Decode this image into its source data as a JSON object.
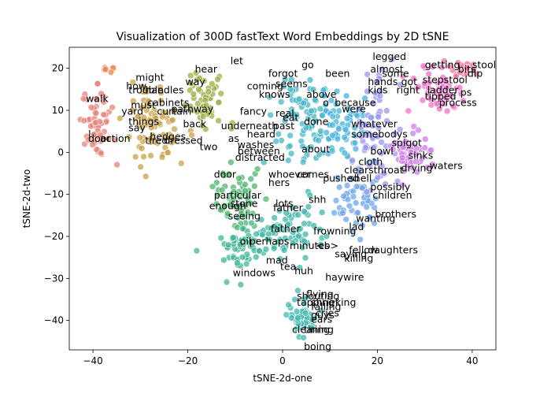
{
  "chart_data": {
    "type": "scatter",
    "title": "Visualization of 300D fastText Word Embeddings by 2D tSNE",
    "xlabel": "tSNE-2d-one",
    "ylabel": "tSNE-2d-two",
    "xlim": [
      -45,
      45
    ],
    "ylim": [
      -47,
      25
    ],
    "xticks": [
      -40,
      -20,
      0,
      20,
      40
    ],
    "yticks": [
      -40,
      -30,
      -20,
      -10,
      0,
      10,
      20
    ],
    "grid": false,
    "legend": "none",
    "clusters": [
      {
        "color": "#e5847b",
        "center": [
          -39,
          6
        ],
        "spread": [
          3,
          7
        ],
        "n": 60
      },
      {
        "color": "#e88a50",
        "center": [
          -36,
          20
        ],
        "spread": [
          1.5,
          1.5
        ],
        "n": 6
      },
      {
        "color": "#c9a24b",
        "center": [
          -27,
          7
        ],
        "spread": [
          5,
          9
        ],
        "n": 80
      },
      {
        "color": "#9cae45",
        "center": [
          -16,
          13
        ],
        "spread": [
          4,
          7
        ],
        "n": 55
      },
      {
        "color": "#4fb56f",
        "center": [
          -10,
          -10
        ],
        "spread": [
          4,
          8
        ],
        "n": 60
      },
      {
        "color": "#43b596",
        "center": [
          -8,
          -23
        ],
        "spread": [
          6,
          5
        ],
        "n": 60
      },
      {
        "color": "#3fb7a6",
        "center": [
          2,
          -19
        ],
        "spread": [
          6,
          6
        ],
        "n": 70
      },
      {
        "color": "#41b8b0",
        "center": [
          4,
          -39
        ],
        "spread": [
          3,
          4
        ],
        "n": 60
      },
      {
        "color": "#45b7c4",
        "center": [
          4,
          8
        ],
        "spread": [
          6,
          9
        ],
        "n": 90
      },
      {
        "color": "#4bb3de",
        "center": [
          13,
          7
        ],
        "spread": [
          5,
          9
        ],
        "n": 60
      },
      {
        "color": "#6fa6ea",
        "center": [
          15,
          -12
        ],
        "spread": [
          5,
          7
        ],
        "n": 55
      },
      {
        "color": "#9c97ee",
        "center": [
          20,
          6
        ],
        "spread": [
          4,
          12
        ],
        "n": 65
      },
      {
        "color": "#cd7fe4",
        "center": [
          27,
          0
        ],
        "spread": [
          4,
          5
        ],
        "n": 45
      },
      {
        "color": "#ec74c8",
        "center": [
          33,
          15
        ],
        "spread": [
          5,
          5
        ],
        "n": 55
      },
      {
        "color": "#f0749a",
        "center": [
          38,
          20
        ],
        "spread": [
          3,
          2
        ],
        "n": 20
      }
    ],
    "labels": [
      {
        "text": "legged",
        "x": 19,
        "y": 22
      },
      {
        "text": "getting",
        "x": 30,
        "y": 20
      },
      {
        "text": "stool",
        "x": 40,
        "y": 20
      },
      {
        "text": "let",
        "x": -11,
        "y": 21
      },
      {
        "text": "go",
        "x": 4,
        "y": 20
      },
      {
        "text": "almost",
        "x": 18.5,
        "y": 19
      },
      {
        "text": "hear",
        "x": -18.5,
        "y": 19
      },
      {
        "text": "been",
        "x": 9,
        "y": 18
      },
      {
        "text": "some",
        "x": 21,
        "y": 18
      },
      {
        "text": "bits",
        "x": 37,
        "y": 19
      },
      {
        "text": "dip",
        "x": 39,
        "y": 18
      },
      {
        "text": "might",
        "x": -31,
        "y": 17
      },
      {
        "text": "forgot",
        "x": -3,
        "y": 18
      },
      {
        "text": "hands",
        "x": 18,
        "y": 16
      },
      {
        "text": "stepstool",
        "x": 29.5,
        "y": 16.5
      },
      {
        "text": "got",
        "x": 25,
        "y": 16
      },
      {
        "text": "how",
        "x": -33,
        "y": 15
      },
      {
        "text": "way",
        "x": -20.5,
        "y": 16
      },
      {
        "text": "seems",
        "x": -1.5,
        "y": 15.5
      },
      {
        "text": "coming",
        "x": -7.5,
        "y": 15
      },
      {
        "text": "kids",
        "x": 18,
        "y": 14
      },
      {
        "text": "right",
        "x": 24,
        "y": 14
      },
      {
        "text": "ladder",
        "x": 30.5,
        "y": 14
      },
      {
        "text": "ps",
        "x": 37.5,
        "y": 13.5
      },
      {
        "text": "trouble",
        "x": -32.5,
        "y": 14
      },
      {
        "text": "handles",
        "x": -29,
        "y": 14
      },
      {
        "text": "knows",
        "x": -5,
        "y": 13
      },
      {
        "text": "above",
        "x": 5,
        "y": 13
      },
      {
        "text": "tipped",
        "x": 30,
        "y": 12.5
      },
      {
        "text": "process",
        "x": 33,
        "y": 11
      },
      {
        "text": "walk",
        "x": -41.5,
        "y": 12
      },
      {
        "text": "because",
        "x": 11,
        "y": 11
      },
      {
        "text": "o",
        "x": 8.5,
        "y": 11
      },
      {
        "text": "must",
        "x": -32,
        "y": 10.5
      },
      {
        "text": "cabinets",
        "x": -28.5,
        "y": 11
      },
      {
        "text": "were",
        "x": 12.5,
        "y": 9.5
      },
      {
        "text": "yard",
        "x": -34,
        "y": 9
      },
      {
        "text": "curtain",
        "x": -26.5,
        "y": 9
      },
      {
        "text": "pathway",
        "x": -23.5,
        "y": 9.5
      },
      {
        "text": "fancy",
        "x": -9,
        "y": 9
      },
      {
        "text": "real",
        "x": -1.5,
        "y": 8.5
      },
      {
        "text": "eat",
        "x": 0,
        "y": 7.5
      },
      {
        "text": "done",
        "x": 4.5,
        "y": 6.5
      },
      {
        "text": "whatever",
        "x": 14.5,
        "y": 6
      },
      {
        "text": "things",
        "x": -32.5,
        "y": 6.5
      },
      {
        "text": "back",
        "x": -21,
        "y": 6
      },
      {
        "text": "underneath",
        "x": -13,
        "y": 5.5
      },
      {
        "text": "past",
        "x": -2,
        "y": 5.5
      },
      {
        "text": "say",
        "x": -32.5,
        "y": 5
      },
      {
        "text": "heard",
        "x": -7.5,
        "y": 3.5
      },
      {
        "text": "somebodys",
        "x": 14.5,
        "y": 3.5
      },
      {
        "text": "hedges",
        "x": -28,
        "y": 3
      },
      {
        "text": "l",
        "x": -41,
        "y": 3.5
      },
      {
        "text": "door",
        "x": -41,
        "y": 2.5
      },
      {
        "text": "action",
        "x": -38.5,
        "y": 2.5
      },
      {
        "text": "tired",
        "x": -29,
        "y": 2
      },
      {
        "text": "dressed",
        "x": -25,
        "y": 2
      },
      {
        "text": "as",
        "x": -11.5,
        "y": 2.5
      },
      {
        "text": "spigot",
        "x": 23,
        "y": 1.5
      },
      {
        "text": "washes",
        "x": -9.5,
        "y": 1
      },
      {
        "text": "two",
        "x": -17.5,
        "y": 0.5
      },
      {
        "text": "about",
        "x": 4,
        "y": 0
      },
      {
        "text": "bowl",
        "x": 18.5,
        "y": -0.5
      },
      {
        "text": "between",
        "x": -9.5,
        "y": -0.5
      },
      {
        "text": "sinks",
        "x": 26.5,
        "y": -1.5
      },
      {
        "text": "distracted",
        "x": -10,
        "y": -2
      },
      {
        "text": "cloth",
        "x": 16,
        "y": -3
      },
      {
        "text": "waters",
        "x": 31,
        "y": -4
      },
      {
        "text": "drying",
        "x": 25,
        "y": -4.5
      },
      {
        "text": "clearsthroat",
        "x": 13,
        "y": -5
      },
      {
        "text": "door",
        "x": -14.5,
        "y": -6
      },
      {
        "text": "whoever",
        "x": -3,
        "y": -6
      },
      {
        "text": "comes",
        "x": 3,
        "y": -6
      },
      {
        "text": "pushed",
        "x": 8.5,
        "y": -7
      },
      {
        "text": "shell",
        "x": 14,
        "y": -7
      },
      {
        "text": "hers",
        "x": -3,
        "y": -8
      },
      {
        "text": "possibly",
        "x": 18.5,
        "y": -9
      },
      {
        "text": "particular",
        "x": -14.5,
        "y": -11
      },
      {
        "text": "children",
        "x": 19,
        "y": -11
      },
      {
        "text": "shh",
        "x": 5.5,
        "y": -12
      },
      {
        "text": "enough",
        "x": -15.5,
        "y": -13.5
      },
      {
        "text": "stone",
        "x": -11,
        "y": -13
      },
      {
        "text": "lots",
        "x": -1.5,
        "y": -13
      },
      {
        "text": "father",
        "x": -2,
        "y": -14
      },
      {
        "text": "seeing",
        "x": -11.5,
        "y": -16
      },
      {
        "text": "wanting",
        "x": 15.5,
        "y": -16.5
      },
      {
        "text": "brothers",
        "x": 19.5,
        "y": -15.5
      },
      {
        "text": "lad",
        "x": 14,
        "y": -18.5
      },
      {
        "text": "father",
        "x": -2.5,
        "y": -19
      },
      {
        "text": "frowning",
        "x": 6.5,
        "y": -19.5
      },
      {
        "text": "oil",
        "x": -9,
        "y": -22
      },
      {
        "text": "perhaps",
        "x": -7,
        "y": -22
      },
      {
        "text": "minutes",
        "x": 1.5,
        "y": -23
      },
      {
        "text": "<b>",
        "x": 7,
        "y": -23
      },
      {
        "text": "fellow",
        "x": 14,
        "y": -24
      },
      {
        "text": "daughters",
        "x": 18,
        "y": -24
      },
      {
        "text": "saying",
        "x": 11,
        "y": -25
      },
      {
        "text": "killing",
        "x": 13,
        "y": -26
      },
      {
        "text": "mad",
        "x": -3.5,
        "y": -26.5
      },
      {
        "text": "tea",
        "x": -0.5,
        "y": -28
      },
      {
        "text": "huh",
        "x": 2.5,
        "y": -29
      },
      {
        "text": "windows",
        "x": -10.5,
        "y": -29.5
      },
      {
        "text": "haywire",
        "x": 9,
        "y": -30.5
      },
      {
        "text": "flying",
        "x": 5,
        "y": -34.5
      },
      {
        "text": "shouting",
        "x": 3,
        "y": -35
      },
      {
        "text": "tapping",
        "x": 3,
        "y": -36.5
      },
      {
        "text": "shrieking",
        "x": 6,
        "y": -36.5
      },
      {
        "text": "falling",
        "x": 6,
        "y": -37.5
      },
      {
        "text": "guys",
        "x": 6,
        "y": -39.5
      },
      {
        "text": "cries",
        "x": 7,
        "y": -39
      },
      {
        "text": "ears",
        "x": 6,
        "y": -40.5
      },
      {
        "text": "cleaning",
        "x": 2,
        "y": -43
      },
      {
        "text": "tiring",
        "x": 4.5,
        "y": -43
      },
      {
        "text": "boing",
        "x": 4.5,
        "y": -47
      }
    ]
  }
}
